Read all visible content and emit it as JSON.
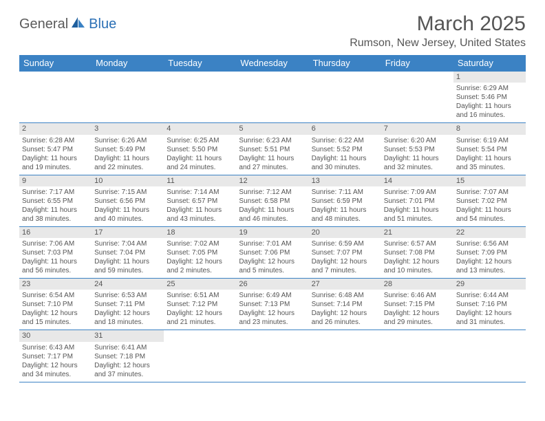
{
  "logo": {
    "part1": "General",
    "part2": "Blue"
  },
  "title": "March 2025",
  "location": "Rumson, New Jersey, United States",
  "colors": {
    "header_bg": "#3b82c4",
    "header_text": "#ffffff",
    "border": "#3b82c4",
    "daynum_bg": "#e8e8e8",
    "text": "#555555",
    "logo_blue": "#2a6fb5"
  },
  "day_headers": [
    "Sunday",
    "Monday",
    "Tuesday",
    "Wednesday",
    "Thursday",
    "Friday",
    "Saturday"
  ],
  "weeks": [
    [
      null,
      null,
      null,
      null,
      null,
      null,
      {
        "n": "1",
        "sr": "Sunrise: 6:29 AM",
        "ss": "Sunset: 5:46 PM",
        "dl": "Daylight: 11 hours and 16 minutes."
      }
    ],
    [
      {
        "n": "2",
        "sr": "Sunrise: 6:28 AM",
        "ss": "Sunset: 5:47 PM",
        "dl": "Daylight: 11 hours and 19 minutes."
      },
      {
        "n": "3",
        "sr": "Sunrise: 6:26 AM",
        "ss": "Sunset: 5:49 PM",
        "dl": "Daylight: 11 hours and 22 minutes."
      },
      {
        "n": "4",
        "sr": "Sunrise: 6:25 AM",
        "ss": "Sunset: 5:50 PM",
        "dl": "Daylight: 11 hours and 24 minutes."
      },
      {
        "n": "5",
        "sr": "Sunrise: 6:23 AM",
        "ss": "Sunset: 5:51 PM",
        "dl": "Daylight: 11 hours and 27 minutes."
      },
      {
        "n": "6",
        "sr": "Sunrise: 6:22 AM",
        "ss": "Sunset: 5:52 PM",
        "dl": "Daylight: 11 hours and 30 minutes."
      },
      {
        "n": "7",
        "sr": "Sunrise: 6:20 AM",
        "ss": "Sunset: 5:53 PM",
        "dl": "Daylight: 11 hours and 32 minutes."
      },
      {
        "n": "8",
        "sr": "Sunrise: 6:19 AM",
        "ss": "Sunset: 5:54 PM",
        "dl": "Daylight: 11 hours and 35 minutes."
      }
    ],
    [
      {
        "n": "9",
        "sr": "Sunrise: 7:17 AM",
        "ss": "Sunset: 6:55 PM",
        "dl": "Daylight: 11 hours and 38 minutes."
      },
      {
        "n": "10",
        "sr": "Sunrise: 7:15 AM",
        "ss": "Sunset: 6:56 PM",
        "dl": "Daylight: 11 hours and 40 minutes."
      },
      {
        "n": "11",
        "sr": "Sunrise: 7:14 AM",
        "ss": "Sunset: 6:57 PM",
        "dl": "Daylight: 11 hours and 43 minutes."
      },
      {
        "n": "12",
        "sr": "Sunrise: 7:12 AM",
        "ss": "Sunset: 6:58 PM",
        "dl": "Daylight: 11 hours and 46 minutes."
      },
      {
        "n": "13",
        "sr": "Sunrise: 7:11 AM",
        "ss": "Sunset: 6:59 PM",
        "dl": "Daylight: 11 hours and 48 minutes."
      },
      {
        "n": "14",
        "sr": "Sunrise: 7:09 AM",
        "ss": "Sunset: 7:01 PM",
        "dl": "Daylight: 11 hours and 51 minutes."
      },
      {
        "n": "15",
        "sr": "Sunrise: 7:07 AM",
        "ss": "Sunset: 7:02 PM",
        "dl": "Daylight: 11 hours and 54 minutes."
      }
    ],
    [
      {
        "n": "16",
        "sr": "Sunrise: 7:06 AM",
        "ss": "Sunset: 7:03 PM",
        "dl": "Daylight: 11 hours and 56 minutes."
      },
      {
        "n": "17",
        "sr": "Sunrise: 7:04 AM",
        "ss": "Sunset: 7:04 PM",
        "dl": "Daylight: 11 hours and 59 minutes."
      },
      {
        "n": "18",
        "sr": "Sunrise: 7:02 AM",
        "ss": "Sunset: 7:05 PM",
        "dl": "Daylight: 12 hours and 2 minutes."
      },
      {
        "n": "19",
        "sr": "Sunrise: 7:01 AM",
        "ss": "Sunset: 7:06 PM",
        "dl": "Daylight: 12 hours and 5 minutes."
      },
      {
        "n": "20",
        "sr": "Sunrise: 6:59 AM",
        "ss": "Sunset: 7:07 PM",
        "dl": "Daylight: 12 hours and 7 minutes."
      },
      {
        "n": "21",
        "sr": "Sunrise: 6:57 AM",
        "ss": "Sunset: 7:08 PM",
        "dl": "Daylight: 12 hours and 10 minutes."
      },
      {
        "n": "22",
        "sr": "Sunrise: 6:56 AM",
        "ss": "Sunset: 7:09 PM",
        "dl": "Daylight: 12 hours and 13 minutes."
      }
    ],
    [
      {
        "n": "23",
        "sr": "Sunrise: 6:54 AM",
        "ss": "Sunset: 7:10 PM",
        "dl": "Daylight: 12 hours and 15 minutes."
      },
      {
        "n": "24",
        "sr": "Sunrise: 6:53 AM",
        "ss": "Sunset: 7:11 PM",
        "dl": "Daylight: 12 hours and 18 minutes."
      },
      {
        "n": "25",
        "sr": "Sunrise: 6:51 AM",
        "ss": "Sunset: 7:12 PM",
        "dl": "Daylight: 12 hours and 21 minutes."
      },
      {
        "n": "26",
        "sr": "Sunrise: 6:49 AM",
        "ss": "Sunset: 7:13 PM",
        "dl": "Daylight: 12 hours and 23 minutes."
      },
      {
        "n": "27",
        "sr": "Sunrise: 6:48 AM",
        "ss": "Sunset: 7:14 PM",
        "dl": "Daylight: 12 hours and 26 minutes."
      },
      {
        "n": "28",
        "sr": "Sunrise: 6:46 AM",
        "ss": "Sunset: 7:15 PM",
        "dl": "Daylight: 12 hours and 29 minutes."
      },
      {
        "n": "29",
        "sr": "Sunrise: 6:44 AM",
        "ss": "Sunset: 7:16 PM",
        "dl": "Daylight: 12 hours and 31 minutes."
      }
    ],
    [
      {
        "n": "30",
        "sr": "Sunrise: 6:43 AM",
        "ss": "Sunset: 7:17 PM",
        "dl": "Daylight: 12 hours and 34 minutes."
      },
      {
        "n": "31",
        "sr": "Sunrise: 6:41 AM",
        "ss": "Sunset: 7:18 PM",
        "dl": "Daylight: 12 hours and 37 minutes."
      },
      null,
      null,
      null,
      null,
      null
    ]
  ]
}
